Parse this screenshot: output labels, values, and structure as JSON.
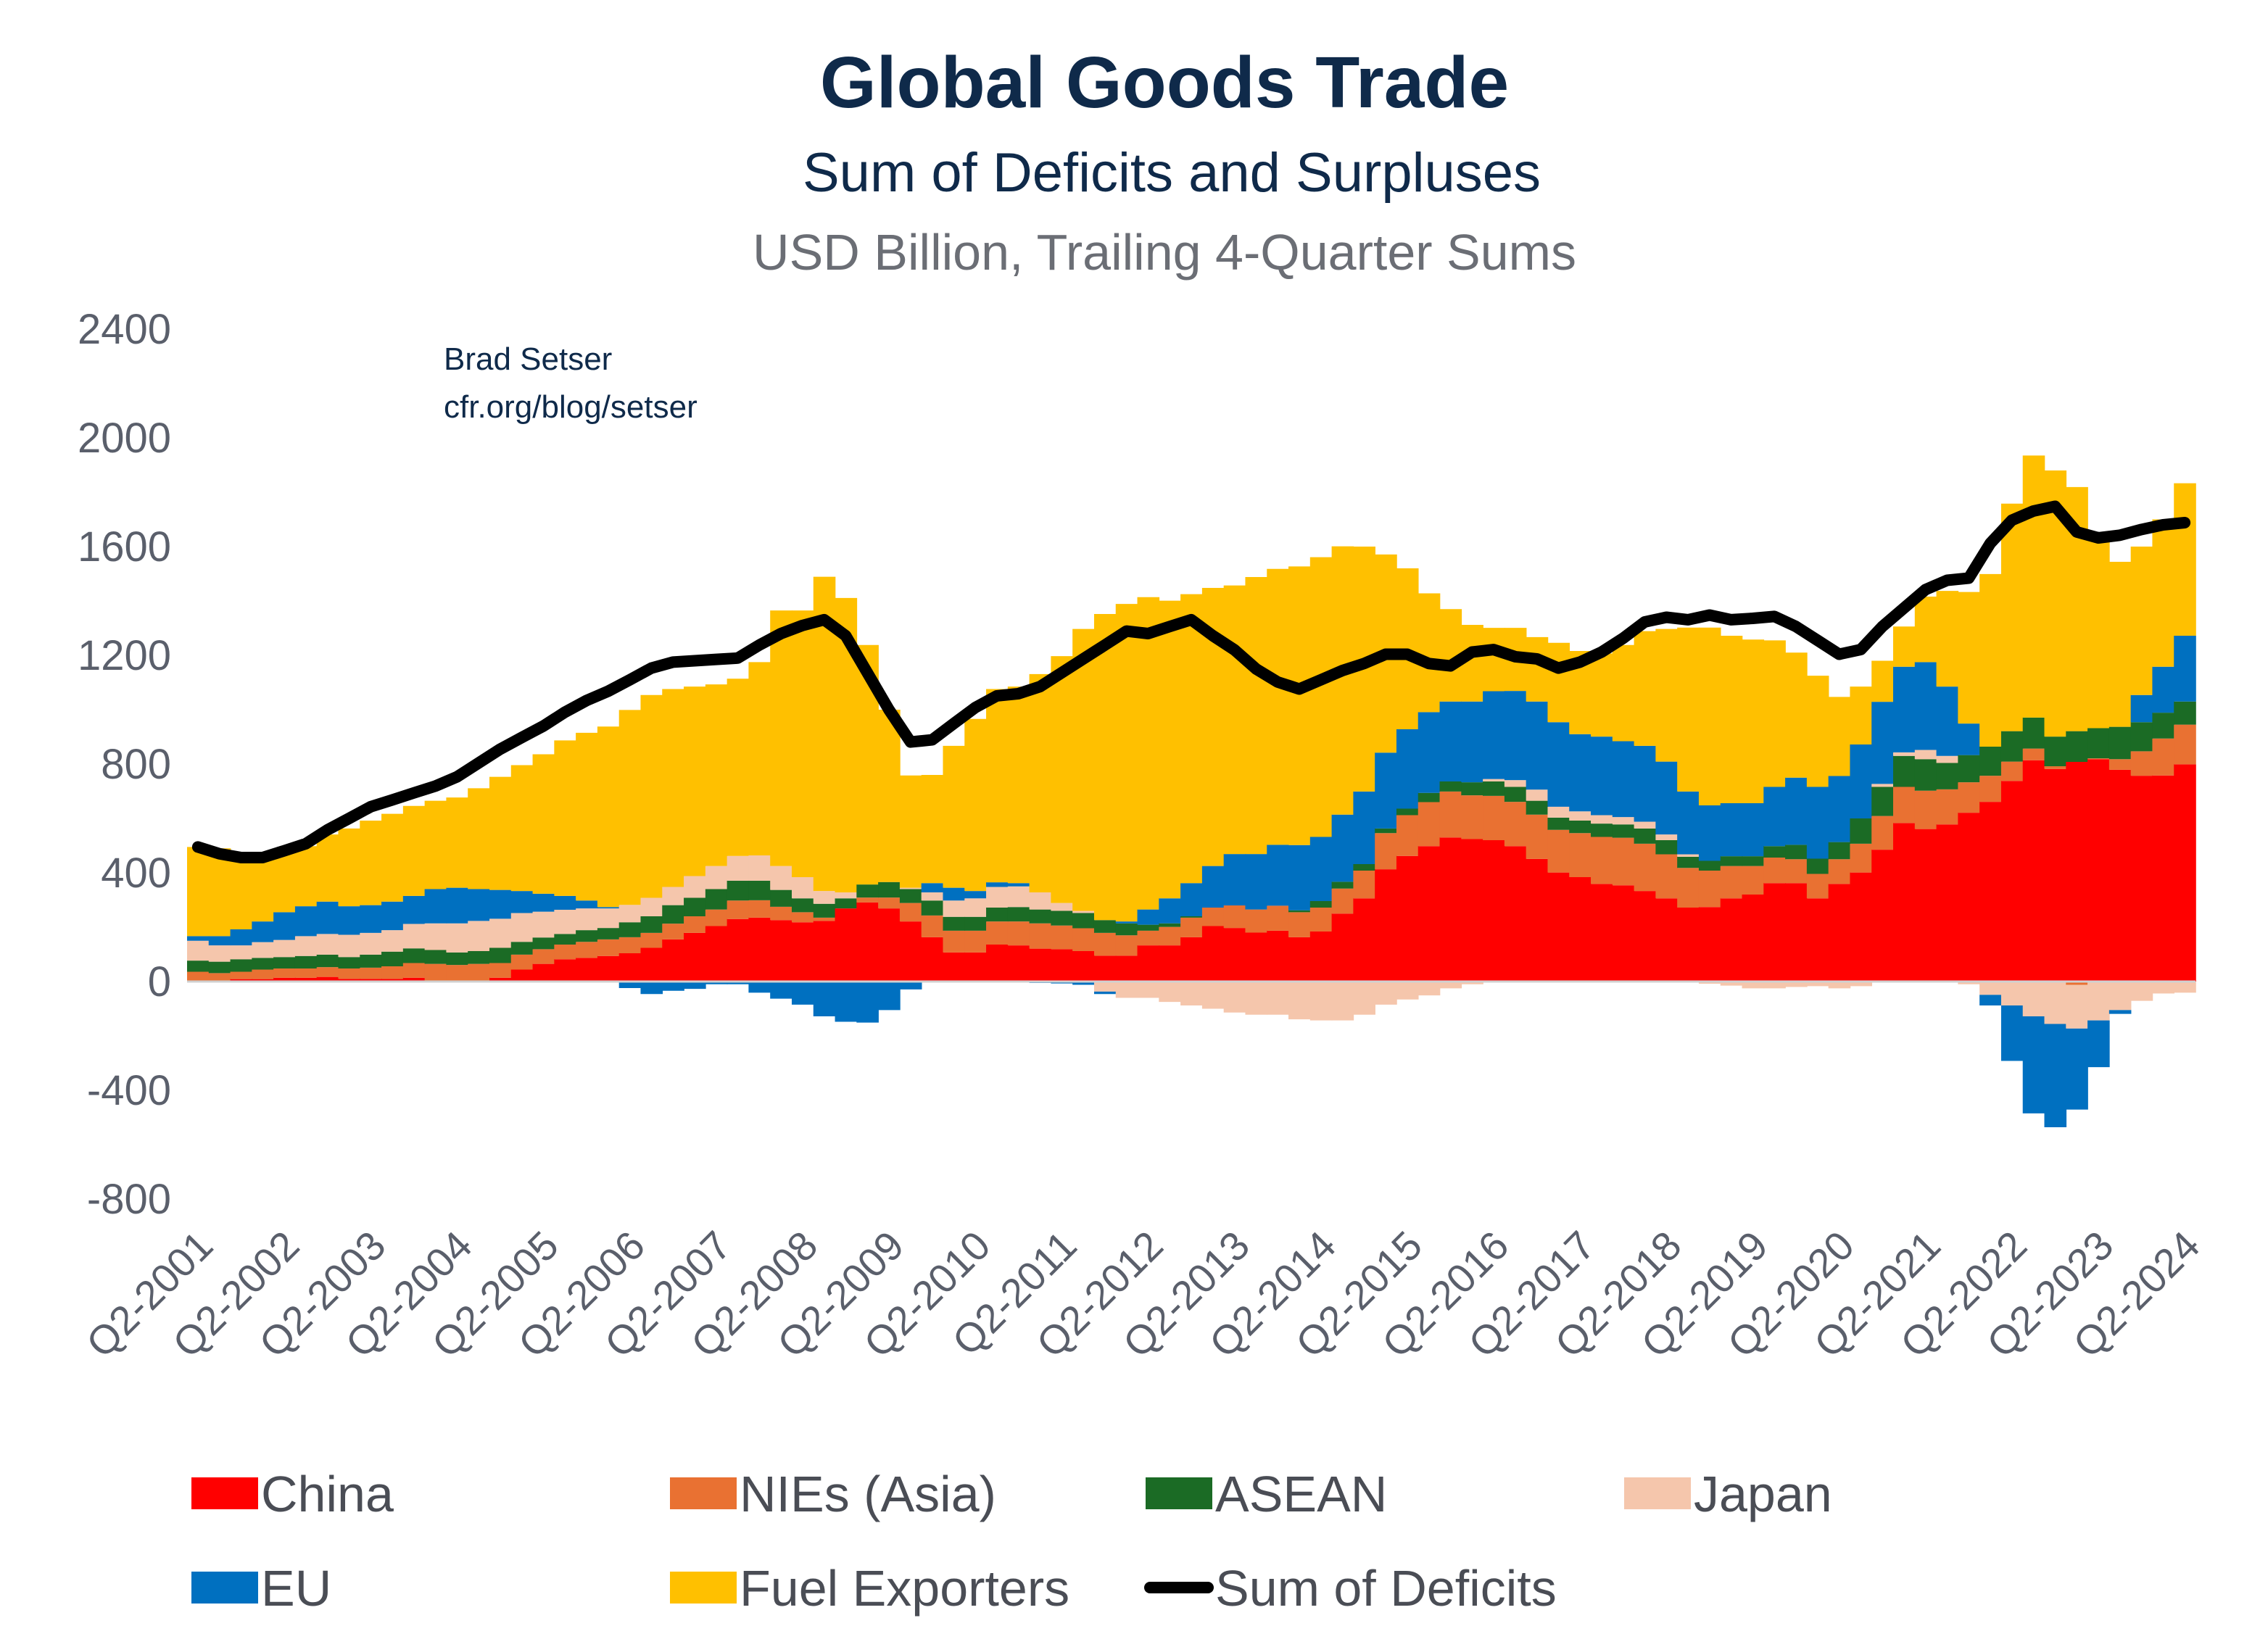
{
  "chart_data": {
    "type": "area",
    "style": "stacked step area with line overlay",
    "title": "Global Goods Trade",
    "subtitle": "Sum of Deficits and Surpluses",
    "units": "USD Billion, Trailing 4-Quarter Sums",
    "annotation": [
      "Brad Setser",
      "cfr.org/blog/setser"
    ],
    "xlabel": "",
    "ylabel": "",
    "ylim": [
      -800,
      2400
    ],
    "yticks": [
      -800,
      -400,
      0,
      400,
      800,
      1200,
      1600,
      2000,
      2400
    ],
    "x_start": "Q2-2001",
    "x_end": "Q2-2024",
    "xtick_labels": [
      "Q2-2001",
      "Q2-2002",
      "Q2-2003",
      "Q2-2004",
      "Q2-2005",
      "Q2-2006",
      "Q2-2007",
      "Q2-2008",
      "Q2-2009",
      "Q2-2010",
      "Q2-2011",
      "Q2-2012",
      "Q2-2013",
      "Q2-2014",
      "Q2-2015",
      "Q2-2016",
      "Q2-2017",
      "Q2-2018",
      "Q2-2019",
      "Q2-2020",
      "Q2-2021",
      "Q2-2022",
      "Q2-2023",
      "Q2-2024"
    ],
    "grid": false,
    "legend_position": "bottom",
    "series": [
      {
        "name": "China",
        "color": "#ff0000",
        "values": [
          0,
          0,
          9,
          9,
          14,
          14,
          17,
          10,
          10,
          10,
          14,
          3,
          3,
          3,
          14,
          44,
          65,
          82,
          87,
          94,
          104,
          124,
          155,
          179,
          204,
          230,
          235,
          226,
          218,
          223,
          269,
          291,
          269,
          221,
          163,
          107,
          107,
          136,
          133,
          121,
          119,
          112,
          95,
          95,
          133,
          133,
          163,
          204,
          197,
          180,
          187,
          163,
          184,
          250,
          306,
          413,
          462,
          498,
          530,
          524,
          520,
          498,
          451,
          401,
          384,
          359,
          354,
          333,
          306,
          272,
          274,
          306,
          320,
          362,
          362,
          306,
          359,
          401,
          485,
          583,
          561,
          578,
          621,
          661,
          738,
          814,
          782,
          808,
          818,
          779,
          757,
          758,
          799
        ]
      },
      {
        "name": "NIEs (Asia)",
        "color": "#e97132",
        "values": [
          36,
          31,
          27,
          35,
          34,
          34,
          36,
          38,
          41,
          46,
          54,
          62,
          58,
          62,
          54,
          55,
          54,
          54,
          59,
          61,
          59,
          55,
          58,
          61,
          61,
          68,
          64,
          49,
          37,
          12,
          0,
          18,
          40,
          68,
          80,
          80,
          80,
          85,
          88,
          93,
          87,
          84,
          84,
          75,
          54,
          68,
          72,
          68,
          83,
          85,
          92,
          92,
          88,
          92,
          102,
          133,
          150,
          162,
          169,
          161,
          163,
          163,
          163,
          157,
          162,
          173,
          175,
          174,
          162,
          146,
          134,
          119,
          105,
          94,
          88,
          90,
          91,
          106,
          124,
          133,
          141,
          129,
          112,
          96,
          71,
          43,
          10,
          -12,
          3,
          39,
          90,
          136,
          146
        ]
      },
      {
        "name": "ASEAN",
        "color": "#1b6b25",
        "values": [
          41,
          42,
          46,
          43,
          42,
          46,
          46,
          42,
          48,
          54,
          54,
          51,
          46,
          47,
          56,
          47,
          43,
          39,
          43,
          42,
          55,
          61,
          68,
          68,
          75,
          73,
          72,
          62,
          51,
          51,
          37,
          48,
          57,
          51,
          55,
          51,
          51,
          51,
          53,
          51,
          54,
          56,
          47,
          44,
          22,
          13,
          5,
          0,
          0,
          0,
          0,
          7,
          24,
          25,
          24,
          17,
          24,
          34,
          37,
          48,
          53,
          55,
          51,
          45,
          46,
          49,
          49,
          56,
          52,
          41,
          36,
          36,
          36,
          42,
          53,
          56,
          63,
          93,
          107,
          114,
          116,
          97,
          100,
          107,
          112,
          114,
          109,
          113,
          111,
          119,
          107,
          95,
          85
        ]
      },
      {
        "name": "Japan",
        "color": "#f5c6ac",
        "values": [
          73,
          60,
          51,
          58,
          63,
          73,
          76,
          82,
          80,
          79,
          90,
          98,
          107,
          111,
          107,
          106,
          95,
          89,
          80,
          72,
          64,
          68,
          67,
          80,
          85,
          91,
          93,
          88,
          78,
          47,
          22,
          0,
          0,
          5,
          30,
          60,
          68,
          76,
          76,
          63,
          29,
          8,
          -37,
          -60,
          -60,
          -75,
          -88,
          -100,
          -114,
          -122,
          -122,
          -139,
          -143,
          -143,
          -122,
          -85,
          -66,
          -51,
          -25,
          -10,
          9,
          25,
          41,
          40,
          34,
          31,
          27,
          25,
          21,
          9,
          -8,
          -15,
          -25,
          -25,
          -20,
          -17,
          -25,
          -17,
          11,
          13,
          34,
          26,
          -10,
          -49,
          -88,
          -128,
          -156,
          -161,
          -143,
          -105,
          -71,
          -44,
          -41
        ]
      },
      {
        "name": "EU",
        "color": "#0070c0",
        "values": [
          17,
          34,
          59,
          76,
          102,
          110,
          119,
          105,
          102,
          105,
          103,
          126,
          131,
          117,
          106,
          81,
          66,
          51,
          29,
          5,
          -24,
          -46,
          -34,
          -27,
          -10,
          -10,
          -41,
          -63,
          -85,
          -128,
          -148,
          -151,
          -105,
          -29,
          34,
          47,
          27,
          17,
          12,
          -5,
          -7,
          -12,
          -9,
          7,
          56,
          92,
          122,
          153,
          189,
          204,
          224,
          240,
          236,
          247,
          267,
          279,
          292,
          297,
          294,
          297,
          323,
          328,
          324,
          311,
          284,
          289,
          279,
          279,
          268,
          231,
          204,
          195,
          195,
          218,
          247,
          264,
          243,
          272,
          302,
          315,
          323,
          255,
          116,
          -39,
          -204,
          -357,
          -380,
          -298,
          -172,
          -14,
          100,
          169,
          242
        ]
      },
      {
        "name": "Fuel Exporters",
        "color": "#ffc000",
        "values": [
          328,
          323,
          281,
          243,
          226,
          221,
          247,
          286,
          311,
          323,
          331,
          325,
          332,
          371,
          416,
          463,
          513,
          572,
          617,
          664,
          717,
          746,
          728,
          697,
          668,
          652,
          711,
          940,
          981,
          1156,
          1083,
          881,
          634,
          413,
          398,
          522,
          633,
          711,
          723,
          803,
          908,
          1037,
          1126,
          1168,
          1149,
          1095,
          1063,
          1023,
          988,
          1019,
          1015,
          1025,
          1029,
          987,
          901,
          729,
          592,
          437,
          340,
          282,
          233,
          232,
          237,
          292,
          306,
          306,
          354,
          422,
          488,
          603,
          654,
          616,
          602,
          539,
          460,
          409,
          291,
          213,
          151,
          148,
          241,
          352,
          484,
          635,
          837,
          964,
          979,
          898,
          708,
          607,
          546,
          542,
          561
        ]
      }
    ],
    "line": {
      "name": "Sum of Deficits",
      "color": "#000000",
      "values": [
        495,
        470,
        456,
        456,
        481,
        507,
        558,
        600,
        643,
        668,
        694,
        719,
        753,
        804,
        855,
        898,
        940,
        991,
        1034,
        1068,
        1110,
        1153,
        1175,
        1180,
        1185,
        1190,
        1238,
        1280,
        1310,
        1331,
        1272,
        1136,
        1000,
        881,
        889,
        949,
        1008,
        1051,
        1059,
        1085,
        1136,
        1187,
        1238,
        1289,
        1280,
        1306,
        1331,
        1272,
        1220,
        1150,
        1102,
        1076,
        1110,
        1144,
        1170,
        1204,
        1204,
        1170,
        1161,
        1212,
        1221,
        1195,
        1187,
        1153,
        1175,
        1212,
        1263,
        1323,
        1340,
        1331,
        1348,
        1331,
        1336,
        1343,
        1306,
        1255,
        1204,
        1221,
        1306,
        1374,
        1442,
        1476,
        1484,
        1612,
        1697,
        1731,
        1748,
        1654,
        1632,
        1642,
        1663,
        1680,
        1688
      ]
    }
  }
}
